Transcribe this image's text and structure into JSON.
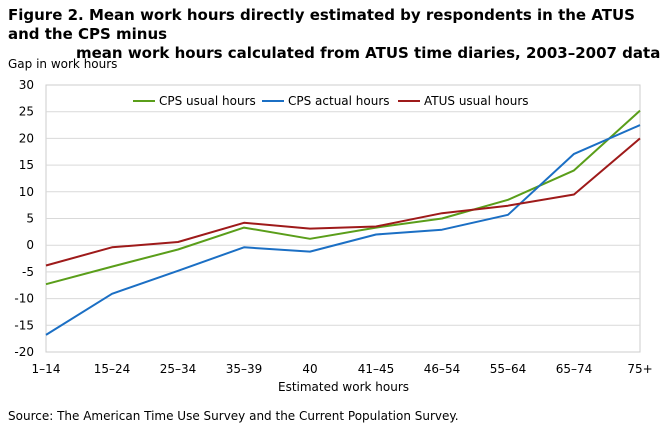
{
  "title_line1": "Figure 2. Mean work hours directly estimated by respondents in the ATUS and the CPS minus",
  "title_line2": "mean work hours calculated from ATUS time diaries, 2003–2007 data",
  "source": "Source: The American Time Use Survey and the Current Population  Survey.",
  "chart_data": {
    "type": "line",
    "ylabel": "Gap in work hours",
    "xlabel": "Estimated work hours",
    "categories": [
      "1–14",
      "15–24",
      "25–34",
      "35–39",
      "40",
      "41–45",
      "46–54",
      "55–64",
      "65–74",
      "75+"
    ],
    "ylim": [
      -20,
      30
    ],
    "yticks": [
      -20,
      -15,
      -10,
      -5,
      0,
      5,
      10,
      15,
      20,
      25,
      30
    ],
    "grid": "horizontal",
    "legend_position": "top",
    "series": [
      {
        "name": "CPS usual hours",
        "color": "#5a9e1a",
        "values": [
          -7.3,
          -4.0,
          -0.8,
          3.3,
          1.2,
          3.3,
          5.0,
          8.5,
          14.0,
          25.2
        ]
      },
      {
        "name": "CPS actual hours",
        "color": "#1b6fc4",
        "values": [
          -16.8,
          -9.1,
          -4.8,
          -0.4,
          -1.2,
          2.0,
          2.9,
          5.7,
          17.1,
          22.5
        ]
      },
      {
        "name": "ATUS usual hours",
        "color": "#9e1a1a",
        "values": [
          -3.8,
          -0.4,
          0.6,
          4.2,
          3.1,
          3.5,
          6.0,
          7.4,
          9.5,
          20.0
        ]
      }
    ]
  }
}
